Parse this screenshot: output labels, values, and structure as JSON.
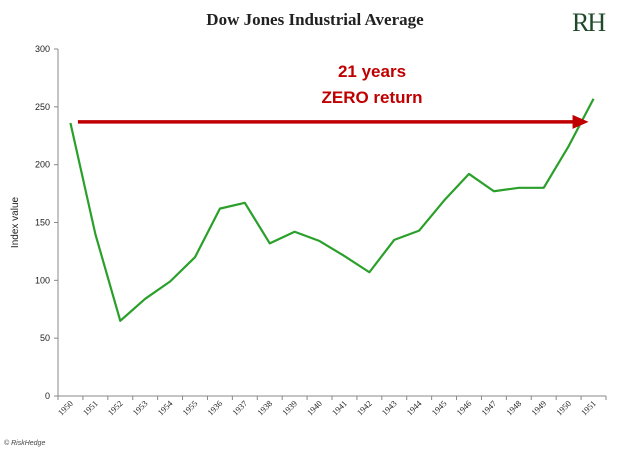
{
  "page": {
    "title": "Dow Jones Industrial Average",
    "logo_text": "RH",
    "footer": "© RiskHedge"
  },
  "chart_data": {
    "type": "line",
    "title": "Dow Jones Industrial Average",
    "xlabel": "",
    "ylabel": "Index value",
    "ylim": [
      0,
      300
    ],
    "yticks": [
      0,
      50,
      100,
      150,
      200,
      250,
      300
    ],
    "grid": false,
    "categories": [
      "1950",
      "1951",
      "1952",
      "1953",
      "1954",
      "1955",
      "1936",
      "1937",
      "1938",
      "1939",
      "1940",
      "1941",
      "1942",
      "1943",
      "1944",
      "1945",
      "1946",
      "1947",
      "1948",
      "1949",
      "1950",
      "1951"
    ],
    "series": [
      {
        "values": [
          236,
          140,
          65,
          84,
          99,
          120,
          162,
          167,
          132,
          142,
          134,
          121,
          107,
          135,
          143,
          169,
          192,
          177,
          180,
          180,
          216,
          257
        ],
        "color": "#2aa02a"
      }
    ],
    "annotation": {
      "lines": [
        "21 years",
        "ZERO return"
      ],
      "color": "#c00000",
      "arrow_from_index": 0.3,
      "arrow_to_index": 20.8,
      "arrow_value": 237
    }
  }
}
